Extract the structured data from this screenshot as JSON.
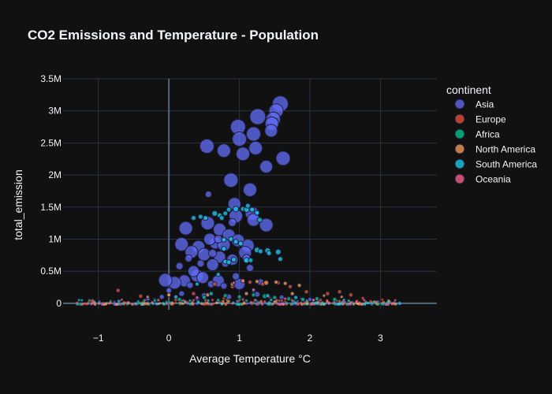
{
  "chart_data": {
    "type": "scatter",
    "title": "CO2 Emissions and Temperature - Population",
    "xlabel": "Average Temperature °C",
    "ylabel": "total_emission",
    "xlim": [
      -1.5,
      3.8
    ],
    "ylim": [
      -100000,
      3500000
    ],
    "x_ticks": [
      {
        "v": -1,
        "label": "−1"
      },
      {
        "v": 0,
        "label": "0"
      },
      {
        "v": 1,
        "label": "1"
      },
      {
        "v": 2,
        "label": "2"
      },
      {
        "v": 3,
        "label": "3"
      }
    ],
    "y_ticks": [
      {
        "v": 0,
        "label": "0"
      },
      {
        "v": 500000,
        "label": "0.5M"
      },
      {
        "v": 1000000,
        "label": "1M"
      },
      {
        "v": 1500000,
        "label": "1.5M"
      },
      {
        "v": 2000000,
        "label": "2M"
      },
      {
        "v": 2500000,
        "label": "2.5M"
      },
      {
        "v": 3000000,
        "label": "3M"
      },
      {
        "v": 3500000,
        "label": "3.5M"
      }
    ],
    "grid": true,
    "legend_title": "continent",
    "legend_position": "right",
    "series": [
      {
        "name": "Asia",
        "color": "#636efa",
        "points": [
          [
            1.58,
            3110000,
            20
          ],
          [
            1.52,
            3000000,
            18
          ],
          [
            1.48,
            2870000,
            18
          ],
          [
            1.46,
            2800000,
            17
          ],
          [
            1.26,
            2910000,
            20
          ],
          [
            0.98,
            2750000,
            19
          ],
          [
            1.45,
            2690000,
            16
          ],
          [
            1.2,
            2640000,
            18
          ],
          [
            1.0,
            2560000,
            18
          ],
          [
            1.62,
            2260000,
            18
          ],
          [
            0.54,
            2450000,
            18
          ],
          [
            0.78,
            2380000,
            17
          ],
          [
            1.23,
            2420000,
            17
          ],
          [
            1.05,
            2330000,
            17
          ],
          [
            1.38,
            2130000,
            16
          ],
          [
            0.88,
            1920000,
            18
          ],
          [
            1.15,
            1770000,
            17
          ],
          [
            0.93,
            1550000,
            16
          ],
          [
            0.95,
            1360000,
            17
          ],
          [
            1.18,
            1400000,
            17
          ],
          [
            1.2,
            1300000,
            16
          ],
          [
            1.38,
            1220000,
            17
          ],
          [
            0.24,
            1170000,
            17
          ],
          [
            0.55,
            1250000,
            17
          ],
          [
            0.72,
            1150000,
            16
          ],
          [
            0.85,
            1060000,
            16
          ],
          [
            0.98,
            980000,
            16
          ],
          [
            1.12,
            900000,
            16
          ],
          [
            0.66,
            940000,
            15
          ],
          [
            0.78,
            910000,
            16
          ],
          [
            0.58,
            1000000,
            15
          ],
          [
            0.42,
            880000,
            16
          ],
          [
            0.18,
            920000,
            17
          ],
          [
            0.32,
            800000,
            16
          ],
          [
            0.5,
            760000,
            16
          ],
          [
            0.72,
            720000,
            15
          ],
          [
            0.9,
            680000,
            14
          ],
          [
            1.08,
            790000,
            16
          ],
          [
            0.62,
            600000,
            15
          ],
          [
            0.4,
            430000,
            16
          ],
          [
            0.22,
            350000,
            15
          ],
          [
            0.08,
            320000,
            16
          ],
          [
            -0.05,
            360000,
            17
          ],
          [
            0.48,
            400000,
            15
          ],
          [
            0.7,
            350000,
            15
          ],
          [
            1.0,
            300000,
            14
          ],
          [
            0.35,
            500000,
            14
          ],
          [
            0.56,
            1700000,
            8
          ],
          [
            0.9,
            1260000,
            10
          ],
          [
            0.7,
            1000000,
            10
          ],
          [
            1.1,
            700000,
            10
          ],
          [
            0.62,
            780000,
            10
          ],
          [
            0.28,
            700000,
            9
          ],
          [
            0.8,
            620000,
            9
          ],
          [
            0.15,
            580000,
            9
          ],
          [
            0.45,
            620000,
            9
          ],
          [
            0.95,
            420000,
            9
          ],
          [
            1.15,
            550000,
            9
          ],
          [
            0.6,
            300000,
            9
          ],
          [
            0.3,
            280000,
            8
          ],
          [
            0.78,
            270000,
            8
          ],
          [
            1.3,
            330000,
            8
          ],
          [
            0.0,
            200000,
            7
          ],
          [
            0.18,
            150000,
            7
          ],
          [
            0.5,
            120000,
            7
          ],
          [
            0.85,
            100000,
            7
          ],
          [
            1.25,
            140000,
            7
          ],
          [
            1.6,
            90000,
            6
          ],
          [
            -0.1,
            100000,
            6
          ],
          [
            0.4,
            80000,
            6
          ],
          [
            2.0,
            60000,
            5
          ],
          [
            1.9,
            40000,
            4
          ],
          [
            -0.3,
            70000,
            5
          ],
          [
            1.45,
            60000,
            5
          ]
        ]
      },
      {
        "name": "Europe",
        "color": "#ef553b",
        "points": [
          [
            -0.72,
            200000,
            5
          ],
          [
            -0.4,
            110000,
            5
          ],
          [
            0.1,
            60000,
            5
          ],
          [
            0.35,
            150000,
            5
          ],
          [
            0.65,
            300000,
            5
          ],
          [
            0.9,
            260000,
            5
          ],
          [
            1.15,
            330000,
            5
          ],
          [
            1.33,
            300000,
            5
          ],
          [
            1.55,
            320000,
            5
          ],
          [
            1.72,
            260000,
            5
          ],
          [
            1.95,
            180000,
            5
          ],
          [
            2.25,
            150000,
            5
          ],
          [
            2.42,
            180000,
            5
          ],
          [
            2.58,
            130000,
            5
          ],
          [
            0.78,
            80000,
            4
          ],
          [
            1.42,
            100000,
            4
          ],
          [
            1.88,
            70000,
            4
          ],
          [
            2.15,
            50000,
            4
          ],
          [
            2.38,
            40000,
            4
          ],
          [
            2.75,
            80000,
            4
          ],
          [
            -0.15,
            50000,
            4
          ],
          [
            0.52,
            50000,
            4
          ],
          [
            1.05,
            60000,
            4
          ],
          [
            1.6,
            40000,
            4
          ]
        ]
      },
      {
        "name": "Africa",
        "color": "#00cc96",
        "points": [
          [
            0.15,
            60000,
            5
          ],
          [
            0.5,
            90000,
            5
          ],
          [
            0.8,
            120000,
            5
          ],
          [
            1.0,
            100000,
            5
          ],
          [
            1.2,
            130000,
            5
          ],
          [
            1.36,
            110000,
            6
          ],
          [
            1.5,
            90000,
            5
          ],
          [
            1.7,
            70000,
            5
          ],
          [
            1.9,
            60000,
            5
          ],
          [
            2.1,
            70000,
            5
          ],
          [
            2.35,
            60000,
            5
          ],
          [
            -0.2,
            40000,
            4
          ],
          [
            0.3,
            40000,
            4
          ],
          [
            0.7,
            50000,
            4
          ],
          [
            1.1,
            40000,
            4
          ],
          [
            1.45,
            50000,
            4
          ],
          [
            2.55,
            40000,
            4
          ]
        ]
      },
      {
        "name": "North America",
        "color": "#ffa15a",
        "points": [
          [
            0.9,
            300000,
            5
          ],
          [
            1.05,
            350000,
            5
          ],
          [
            1.25,
            340000,
            5
          ],
          [
            1.38,
            320000,
            6
          ],
          [
            1.52,
            330000,
            5
          ],
          [
            1.65,
            310000,
            5
          ],
          [
            1.85,
            280000,
            5
          ],
          [
            0.55,
            130000,
            5
          ],
          [
            0.0,
            130000,
            5
          ],
          [
            -0.3,
            100000,
            4
          ],
          [
            2.2,
            120000,
            4
          ],
          [
            2.45,
            100000,
            4
          ],
          [
            1.75,
            150000,
            5
          ],
          [
            1.1,
            150000,
            5
          ]
        ]
      },
      {
        "name": "South America",
        "color": "#19d3f3",
        "points": [
          [
            0.45,
            1350000,
            6
          ],
          [
            0.52,
            1330000,
            6
          ],
          [
            0.65,
            1400000,
            7
          ],
          [
            0.72,
            1370000,
            6
          ],
          [
            0.75,
            1330000,
            6
          ],
          [
            0.8,
            1400000,
            6
          ],
          [
            0.85,
            1460000,
            6
          ],
          [
            0.95,
            1470000,
            7
          ],
          [
            1.05,
            1470000,
            6
          ],
          [
            1.1,
            1460000,
            7
          ],
          [
            1.12,
            1520000,
            6
          ],
          [
            1.18,
            1460000,
            6
          ],
          [
            1.25,
            1410000,
            6
          ],
          [
            1.29,
            1300000,
            6
          ],
          [
            0.35,
            1330000,
            6
          ],
          [
            0.88,
            1000000,
            6
          ],
          [
            0.78,
            990000,
            6
          ],
          [
            0.95,
            960000,
            6
          ],
          [
            1.02,
            930000,
            6
          ],
          [
            1.25,
            830000,
            7
          ],
          [
            1.3,
            810000,
            6
          ],
          [
            1.4,
            820000,
            7
          ],
          [
            1.42,
            780000,
            6
          ],
          [
            1.55,
            800000,
            7
          ],
          [
            1.58,
            690000,
            6
          ],
          [
            1.1,
            670000,
            7
          ],
          [
            1.16,
            670000,
            6
          ],
          [
            0.8,
            650000,
            6
          ],
          [
            0.85,
            640000,
            6
          ],
          [
            0.92,
            680000,
            6
          ],
          [
            0.78,
            850000,
            6
          ],
          [
            0.7,
            450000,
            5
          ],
          [
            0.4,
            300000,
            5
          ],
          [
            1.2,
            200000,
            5
          ],
          [
            0.6,
            150000,
            5
          ],
          [
            1.4,
            120000,
            5
          ],
          [
            0.1,
            100000,
            5
          ],
          [
            1.8,
            90000,
            5
          ]
        ]
      },
      {
        "name": "Oceania",
        "color": "#ff6692",
        "points": [
          [
            0.92,
            320000,
            4
          ],
          [
            1.2,
            210000,
            4
          ],
          [
            0.4,
            90000,
            4
          ],
          [
            1.65,
            70000,
            4
          ],
          [
            2.05,
            50000,
            4
          ]
        ]
      }
    ]
  }
}
